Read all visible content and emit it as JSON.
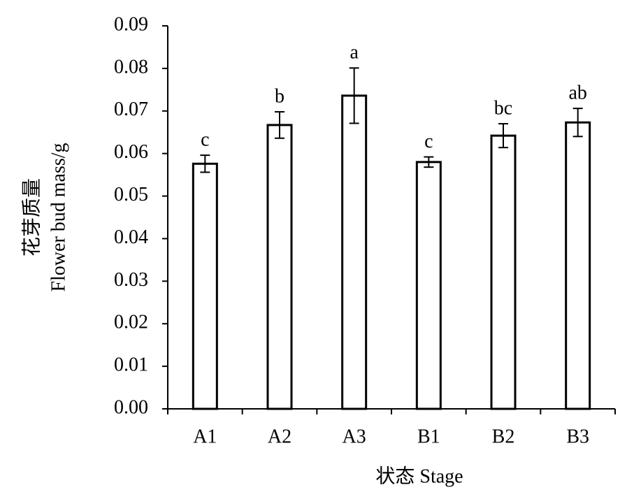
{
  "chart_data": {
    "type": "bar",
    "ylabel": [
      "花芽质量",
      "Flower bud mass/g"
    ],
    "xlabel": "状态 Stage",
    "categories": [
      "A1",
      "A2",
      "A3",
      "B1",
      "B2",
      "B3"
    ],
    "values": [
      0.0576,
      0.0667,
      0.0736,
      0.058,
      0.0642,
      0.0673
    ],
    "errors": [
      0.002,
      0.0031,
      0.0065,
      0.0012,
      0.0028,
      0.0033
    ],
    "annotations": [
      "c",
      "b",
      "a",
      "c",
      "bc",
      "ab"
    ],
    "color": "#ffffff",
    "edgecolor": "#000000",
    "ylim": [
      0,
      0.09
    ],
    "yticks": [
      {
        "value": 0,
        "label": "0.00"
      },
      0.01,
      0.02,
      0.03,
      0.04,
      0.05,
      0.06,
      0.07,
      0.08,
      0.09
    ],
    "grid": false
  }
}
